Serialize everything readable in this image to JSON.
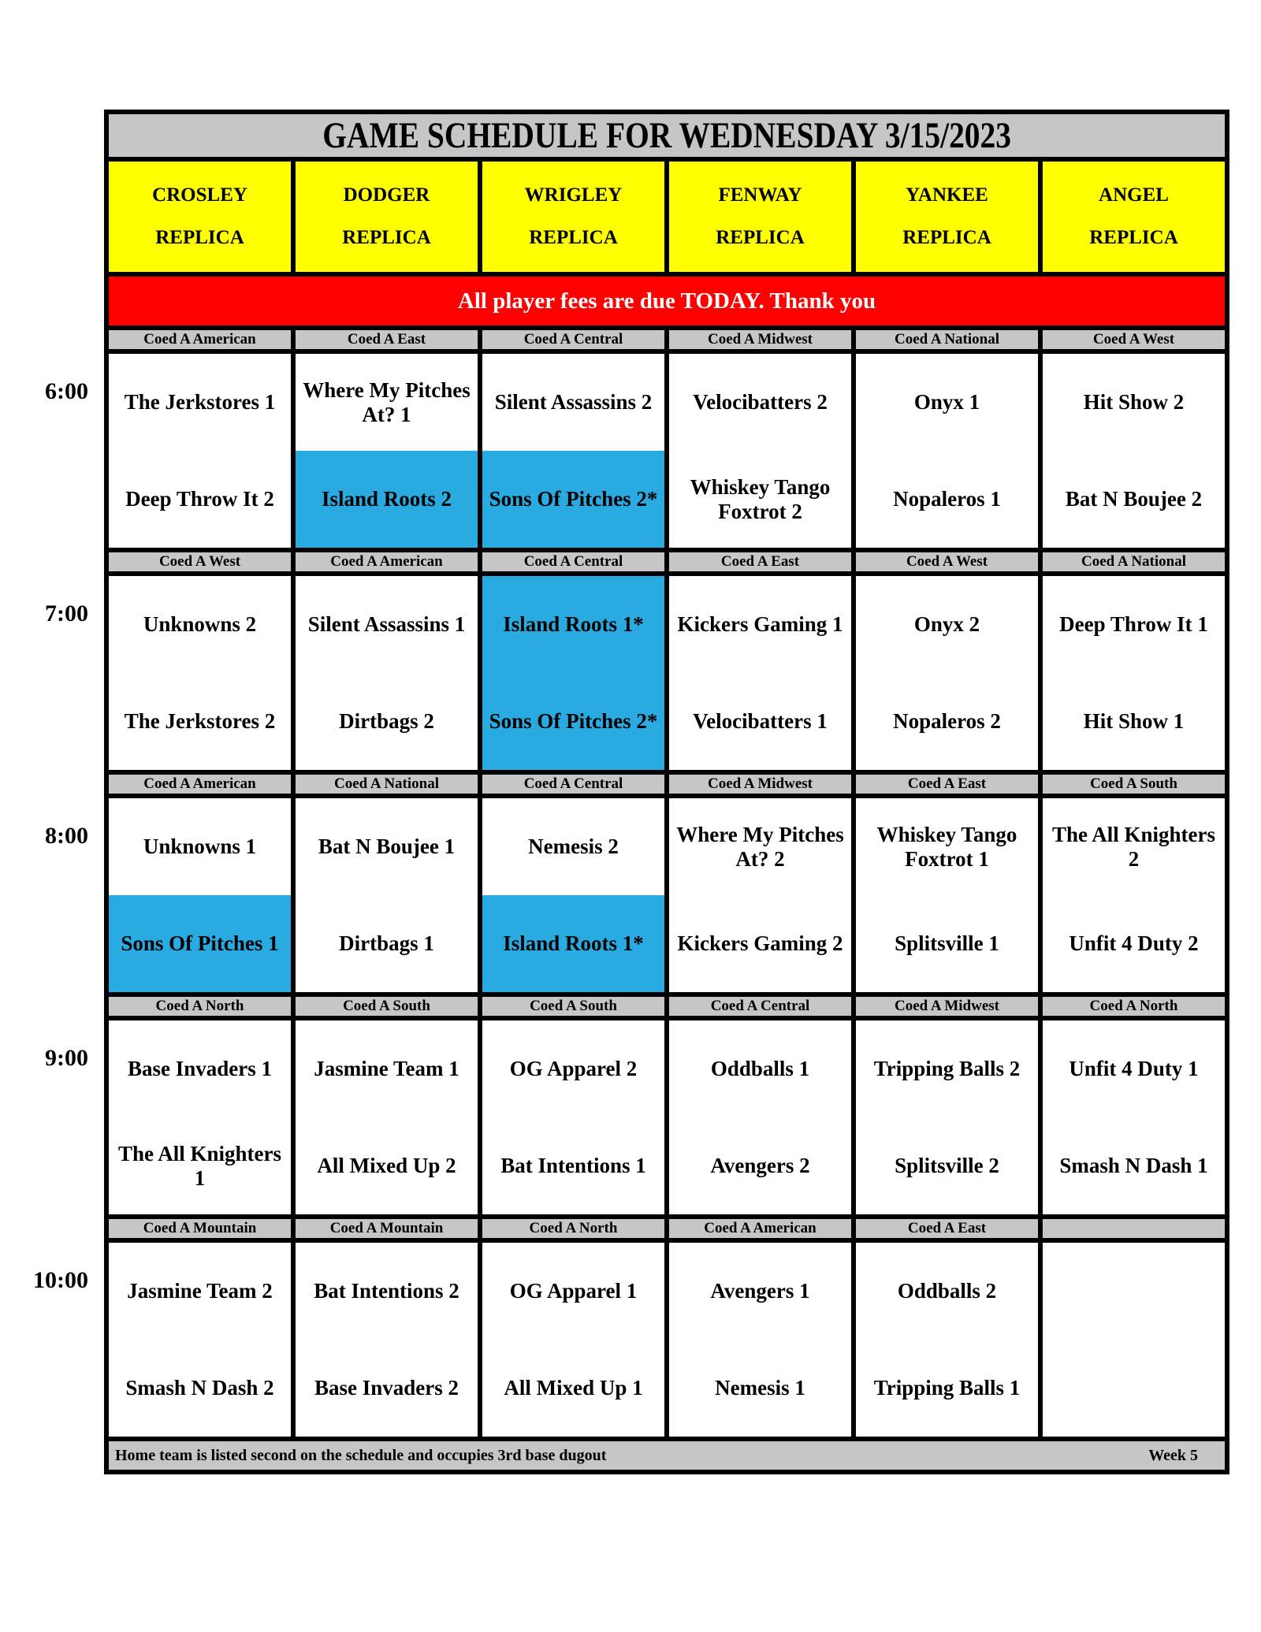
{
  "title": "GAME SCHEDULE FOR WEDNESDAY 3/15/2023",
  "notice": "All player fees are due TODAY. Thank you",
  "footer": {
    "note": "Home team is listed second on the schedule and occupies 3rd base dugout",
    "week": "Week 5"
  },
  "colors": {
    "header_gray": "#C6C6C6",
    "venue_yellow": "#FFFF00",
    "notice_red": "#FF0000",
    "highlight_blue": "#29ABE2"
  },
  "venues": [
    {
      "line1": "CROSLEY",
      "line2": "REPLICA"
    },
    {
      "line1": "DODGER",
      "line2": "REPLICA"
    },
    {
      "line1": "WRIGLEY",
      "line2": "REPLICA"
    },
    {
      "line1": "FENWAY",
      "line2": "REPLICA"
    },
    {
      "line1": "YANKEE",
      "line2": "REPLICA"
    },
    {
      "line1": "ANGEL",
      "line2": "REPLICA"
    }
  ],
  "blocks": [
    {
      "time": "6:00",
      "games": [
        {
          "division": "Coed A American",
          "away": "The Jerkstores 1",
          "home": "Deep Throw It 2",
          "away_hl": false,
          "home_hl": false
        },
        {
          "division": "Coed A East",
          "away": "Where My Pitches At? 1",
          "home": "Island Roots 2",
          "away_hl": false,
          "home_hl": true
        },
        {
          "division": "Coed A Central",
          "away": "Silent Assassins 2",
          "home": "Sons Of Pitches 2*",
          "away_hl": false,
          "home_hl": true
        },
        {
          "division": "Coed A Midwest",
          "away": "Velocibatters 2",
          "home": "Whiskey Tango Foxtrot 2",
          "away_hl": false,
          "home_hl": false
        },
        {
          "division": "Coed A National",
          "away": "Onyx 1",
          "home": "Nopaleros 1",
          "away_hl": false,
          "home_hl": false
        },
        {
          "division": "Coed A West",
          "away": "Hit Show 2",
          "home": "Bat N Boujee 2",
          "away_hl": false,
          "home_hl": false
        }
      ]
    },
    {
      "time": "7:00",
      "games": [
        {
          "division": "Coed A West",
          "away": "Unknowns 2",
          "home": "The Jerkstores 2",
          "away_hl": false,
          "home_hl": false
        },
        {
          "division": "Coed A American",
          "away": "Silent Assassins 1",
          "home": "Dirtbags 2",
          "away_hl": false,
          "home_hl": false
        },
        {
          "division": "Coed A Central",
          "away": "Island Roots 1*",
          "home": "Sons Of Pitches 2*",
          "away_hl": true,
          "home_hl": true
        },
        {
          "division": "Coed A East",
          "away": "Kickers Gaming 1",
          "home": "Velocibatters 1",
          "away_hl": false,
          "home_hl": false
        },
        {
          "division": "Coed A West",
          "away": "Onyx 2",
          "home": "Nopaleros 2",
          "away_hl": false,
          "home_hl": false
        },
        {
          "division": "Coed A National",
          "away": "Deep Throw It 1",
          "home": "Hit Show 1",
          "away_hl": false,
          "home_hl": false
        }
      ]
    },
    {
      "time": "8:00",
      "games": [
        {
          "division": "Coed A American",
          "away": "Unknowns 1",
          "home": "Sons Of Pitches 1",
          "away_hl": false,
          "home_hl": true
        },
        {
          "division": "Coed A National",
          "away": "Bat N Boujee 1",
          "home": "Dirtbags 1",
          "away_hl": false,
          "home_hl": false
        },
        {
          "division": "Coed A Central",
          "away": "Nemesis 2",
          "home": "Island Roots 1*",
          "away_hl": false,
          "home_hl": true
        },
        {
          "division": "Coed A Midwest",
          "away": "Where My Pitches At? 2",
          "home": "Kickers Gaming 2",
          "away_hl": false,
          "home_hl": false
        },
        {
          "division": "Coed A East",
          "away": "Whiskey Tango Foxtrot 1",
          "home": "Splitsville 1",
          "away_hl": false,
          "home_hl": false
        },
        {
          "division": "Coed A South",
          "away": "The All Knighters 2",
          "home": "Unfit 4 Duty 2",
          "away_hl": false,
          "home_hl": false
        }
      ]
    },
    {
      "time": "9:00",
      "games": [
        {
          "division": "Coed A North",
          "away": "Base Invaders 1",
          "home": "The All Knighters 1",
          "away_hl": false,
          "home_hl": false
        },
        {
          "division": "Coed A South",
          "away": "Jasmine Team 1",
          "home": "All Mixed Up 2",
          "away_hl": false,
          "home_hl": false
        },
        {
          "division": "Coed A South",
          "away": "OG Apparel 2",
          "home": "Bat Intentions 1",
          "away_hl": false,
          "home_hl": false
        },
        {
          "division": "Coed A Central",
          "away": "Oddballs 1",
          "home": "Avengers 2",
          "away_hl": false,
          "home_hl": false
        },
        {
          "division": "Coed A Midwest",
          "away": "Tripping Balls 2",
          "home": "Splitsville 2",
          "away_hl": false,
          "home_hl": false
        },
        {
          "division": "Coed A North",
          "away": "Unfit 4 Duty 1",
          "home": "Smash N Dash 1",
          "away_hl": false,
          "home_hl": false
        }
      ]
    },
    {
      "time": "10:00",
      "games": [
        {
          "division": "Coed A Mountain",
          "away": "Jasmine Team 2",
          "home": "Smash N Dash 2",
          "away_hl": false,
          "home_hl": false
        },
        {
          "division": "Coed A Mountain",
          "away": "Bat Intentions 2",
          "home": "Base Invaders 2",
          "away_hl": false,
          "home_hl": false
        },
        {
          "division": "Coed A North",
          "away": "OG Apparel 1",
          "home": "All Mixed Up 1",
          "away_hl": false,
          "home_hl": false
        },
        {
          "division": "Coed A American",
          "away": "Avengers 1",
          "home": "Nemesis 1",
          "away_hl": false,
          "home_hl": false
        },
        {
          "division": "Coed A East",
          "away": "Oddballs 2",
          "home": "Tripping Balls 1",
          "away_hl": false,
          "home_hl": false
        },
        {
          "division": "",
          "away": "",
          "home": "",
          "away_hl": false,
          "home_hl": false
        }
      ]
    }
  ]
}
